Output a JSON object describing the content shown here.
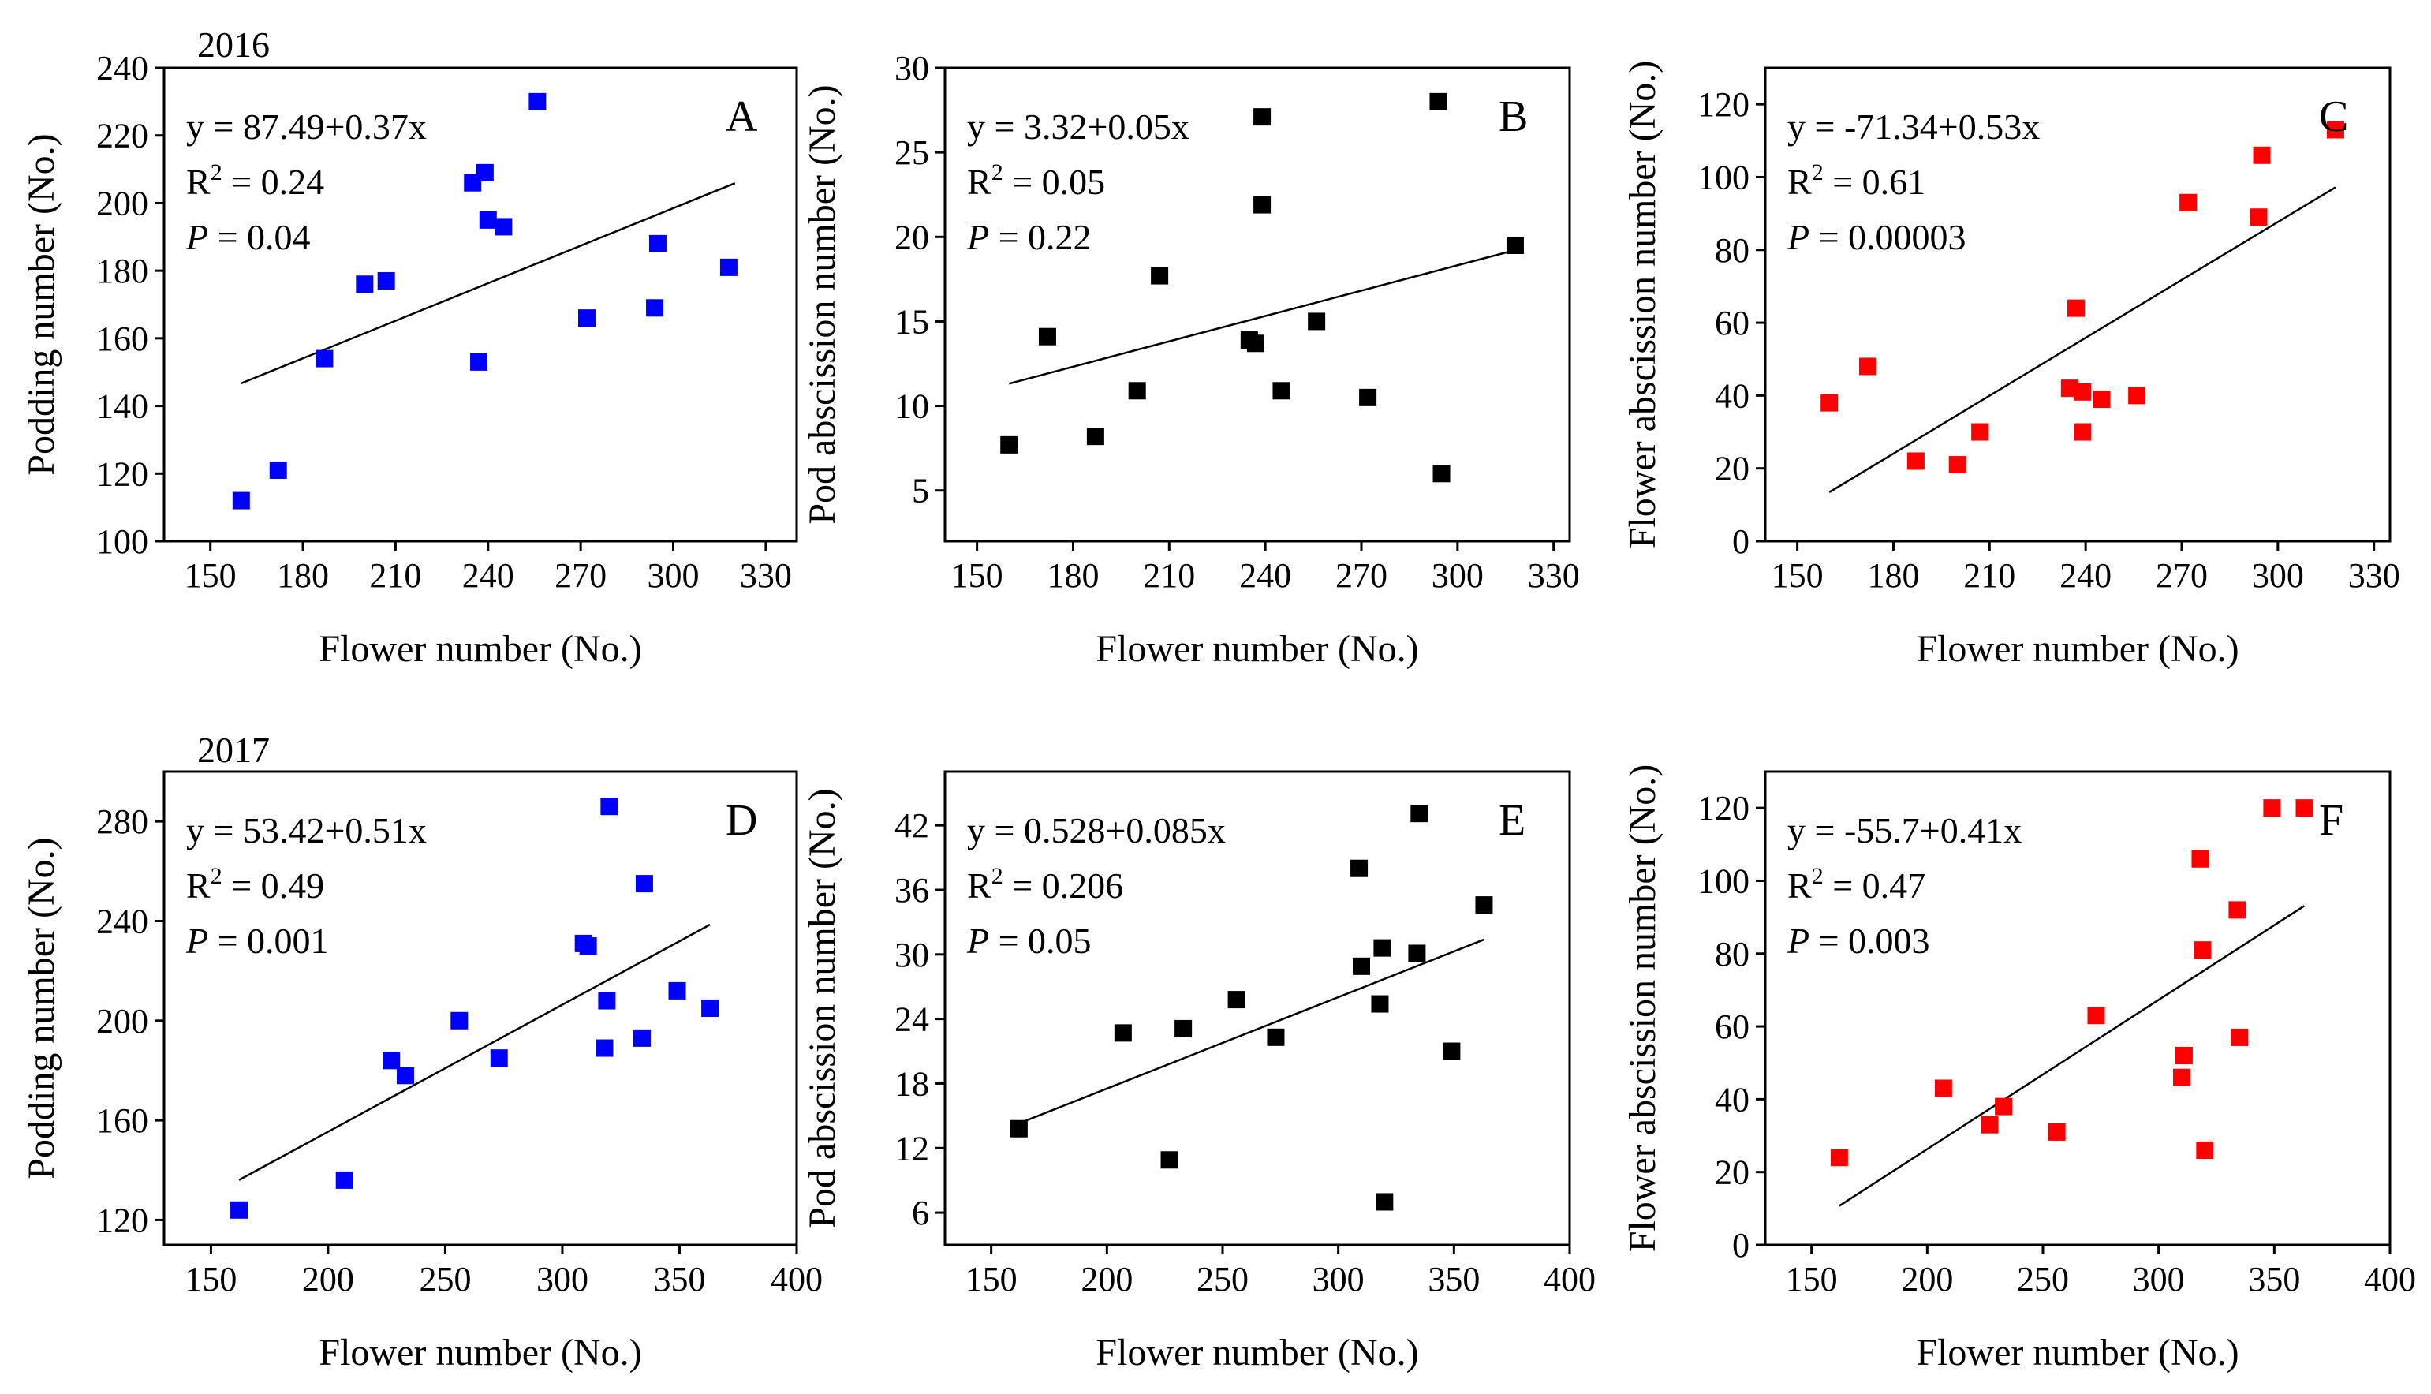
{
  "figure": {
    "year_labels": [
      {
        "text": "2016",
        "panel": 0
      },
      {
        "text": "2017",
        "panel": 3
      }
    ]
  },
  "chart_data": [
    {
      "type": "scatter",
      "letter": "A",
      "xlabel": "Flower number (No.)",
      "ylabel": "Podding number (No.)",
      "color": "#0000ff",
      "xlim": [
        135,
        340
      ],
      "ylim": [
        100,
        240
      ],
      "xticks": [
        150,
        180,
        210,
        240,
        270,
        300,
        330
      ],
      "yticks": [
        100,
        120,
        140,
        160,
        180,
        200,
        220,
        240
      ],
      "equation": "y = 87.49+0.37x",
      "r2_prefix": "R",
      "r2_value": " = 0.24",
      "p_value": " = 0.04",
      "fit": {
        "intercept": 87.49,
        "slope": 0.37,
        "x_range": [
          160,
          320
        ]
      },
      "points": [
        [
          160,
          112
        ],
        [
          172,
          121
        ],
        [
          187,
          154
        ],
        [
          200,
          176
        ],
        [
          207,
          177
        ],
        [
          235,
          206
        ],
        [
          237,
          153
        ],
        [
          239,
          209
        ],
        [
          240,
          195
        ],
        [
          245,
          193
        ],
        [
          256,
          230
        ],
        [
          272,
          166
        ],
        [
          294,
          169
        ],
        [
          295,
          188
        ],
        [
          318,
          181
        ]
      ]
    },
    {
      "type": "scatter",
      "letter": "B",
      "xlabel": "Flower number (No.)",
      "ylabel": "Pod abscission number (No.)",
      "color": "#000000",
      "xlim": [
        140,
        335
      ],
      "ylim": [
        2,
        30
      ],
      "xticks": [
        150,
        180,
        210,
        240,
        270,
        300,
        330
      ],
      "yticks": [
        5,
        10,
        15,
        20,
        25,
        30
      ],
      "equation": "y = 3.32+0.05x",
      "r2_prefix": "R",
      "r2_value": " = 0.05",
      "p_value": " = 0.22",
      "fit": {
        "intercept": 3.32,
        "slope": 0.05,
        "x_range": [
          160,
          318
        ]
      },
      "points": [
        [
          160,
          7.7
        ],
        [
          172,
          14.1
        ],
        [
          187,
          8.2
        ],
        [
          200,
          10.9
        ],
        [
          207,
          17.7
        ],
        [
          235,
          13.9
        ],
        [
          237,
          13.7
        ],
        [
          239,
          27.1
        ],
        [
          239,
          21.9
        ],
        [
          245,
          10.9
        ],
        [
          256,
          15
        ],
        [
          272,
          10.5
        ],
        [
          294,
          28
        ],
        [
          295,
          6
        ],
        [
          318,
          19.5
        ]
      ]
    },
    {
      "type": "scatter",
      "letter": "C",
      "xlabel": "Flower number (No.)",
      "ylabel": "Flower abscission number (No.)",
      "color": "#ff0000",
      "xlim": [
        140,
        335
      ],
      "ylim": [
        0,
        130
      ],
      "xticks": [
        150,
        180,
        210,
        240,
        270,
        300,
        330
      ],
      "yticks": [
        0,
        20,
        40,
        60,
        80,
        100,
        120
      ],
      "equation": "y = -71.34+0.53x",
      "r2_prefix": "R",
      "r2_value": " = 0.61",
      "p_value": " = 0.00003",
      "fit": {
        "intercept": -71.34,
        "slope": 0.53,
        "x_range": [
          160,
          318
        ]
      },
      "points": [
        [
          160,
          38
        ],
        [
          172,
          48
        ],
        [
          187,
          22
        ],
        [
          200,
          21
        ],
        [
          207,
          30
        ],
        [
          235,
          42
        ],
        [
          237,
          64
        ],
        [
          239,
          41
        ],
        [
          239,
          30
        ],
        [
          245,
          39
        ],
        [
          256,
          40
        ],
        [
          272,
          93
        ],
        [
          294,
          89
        ],
        [
          295,
          106
        ],
        [
          318,
          113
        ]
      ]
    },
    {
      "type": "scatter",
      "letter": "D",
      "xlabel": "Flower number (No.)",
      "ylabel": "Podding number (No.)",
      "color": "#0000ff",
      "xlim": [
        130,
        400
      ],
      "ylim": [
        110,
        300
      ],
      "xticks": [
        150,
        200,
        250,
        300,
        350,
        400
      ],
      "yticks": [
        120,
        160,
        200,
        240,
        280
      ],
      "equation": "y = 53.42+0.51x",
      "r2_prefix": "R",
      "r2_value": " = 0.49",
      "p_value": " = 0.001",
      "fit": {
        "intercept": 53.42,
        "slope": 0.51,
        "x_range": [
          162,
          363
        ]
      },
      "points": [
        [
          162,
          124
        ],
        [
          207,
          136
        ],
        [
          227,
          184
        ],
        [
          233,
          178
        ],
        [
          256,
          200
        ],
        [
          273,
          185
        ],
        [
          309,
          231
        ],
        [
          311,
          230
        ],
        [
          318,
          189
        ],
        [
          319,
          208
        ],
        [
          320,
          286
        ],
        [
          334,
          193
        ],
        [
          335,
          255
        ],
        [
          349,
          212
        ],
        [
          363,
          205
        ]
      ]
    },
    {
      "type": "scatter",
      "letter": "E",
      "xlabel": "Flower number (No.)",
      "ylabel": "Pod abscission number (No.)",
      "color": "#000000",
      "xlim": [
        130,
        400
      ],
      "ylim": [
        3,
        47
      ],
      "xticks": [
        150,
        200,
        250,
        300,
        350,
        400
      ],
      "yticks": [
        6,
        12,
        18,
        24,
        30,
        36,
        42
      ],
      "equation": "y = 0.528+0.085x",
      "r2_prefix": "R",
      "r2_value": " = 0.206",
      "p_value": " = 0.05",
      "fit": {
        "intercept": 0.528,
        "slope": 0.085,
        "x_range": [
          162,
          363
        ]
      },
      "points": [
        [
          162,
          13.8
        ],
        [
          207,
          22.7
        ],
        [
          227,
          10.9
        ],
        [
          233,
          23.1
        ],
        [
          256,
          25.8
        ],
        [
          273,
          22.3
        ],
        [
          309,
          38
        ],
        [
          310,
          28.9
        ],
        [
          318,
          25.4
        ],
        [
          319,
          30.6
        ],
        [
          320,
          7
        ],
        [
          334,
          30.1
        ],
        [
          335,
          43.1
        ],
        [
          349,
          21
        ],
        [
          363,
          34.6
        ]
      ]
    },
    {
      "type": "scatter",
      "letter": "F",
      "xlabel": "Flower number (No.)",
      "ylabel": "Flower abscission number (No.)",
      "color": "#ff0000",
      "xlim": [
        130,
        400
      ],
      "ylim": [
        0,
        130
      ],
      "xticks": [
        150,
        200,
        250,
        300,
        350,
        400
      ],
      "yticks": [
        0,
        20,
        40,
        60,
        80,
        100,
        120
      ],
      "equation": "y = -55.7+0.41x",
      "r2_prefix": "R",
      "r2_value": " = 0.47",
      "p_value": " = 0.003",
      "fit": {
        "intercept": -55.7,
        "slope": 0.41,
        "x_range": [
          162,
          363
        ]
      },
      "points": [
        [
          162,
          24
        ],
        [
          207,
          43
        ],
        [
          227,
          33
        ],
        [
          233,
          38
        ],
        [
          256,
          31
        ],
        [
          273,
          63
        ],
        [
          310,
          46
        ],
        [
          311,
          52
        ],
        [
          318,
          106
        ],
        [
          319,
          81
        ],
        [
          320,
          26
        ],
        [
          334,
          92
        ],
        [
          335,
          57
        ],
        [
          349,
          120
        ],
        [
          363,
          120
        ]
      ]
    }
  ]
}
